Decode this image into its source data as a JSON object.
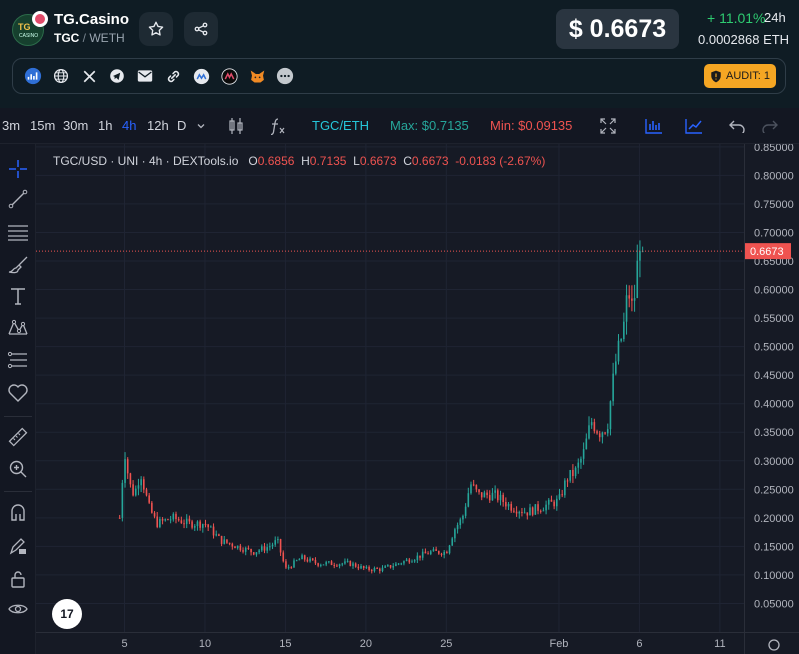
{
  "header": {
    "logo_text": "TG",
    "logo_sub": "CASINO",
    "token_name": "TG.Casino",
    "pair_base": "TGC",
    "pair_sep": " / ",
    "pair_quote": "WETH",
    "price": "$ 0.6673",
    "change": "+ 11.01%",
    "change_period": "24h",
    "eth_price": "0.0002868  ETH"
  },
  "links": {
    "audit_label": "AUDIT: 1",
    "items": [
      "chart-icon",
      "globe-icon",
      "x-icon",
      "telegram-icon",
      "email-icon",
      "link-icon",
      "coinmarketcap-icon",
      "coingecko-icon",
      "metamask-icon",
      "more-icon"
    ]
  },
  "toolbar": {
    "timeframes": [
      "3m",
      "15m",
      "30m",
      "1h",
      "4h",
      "12h",
      "D"
    ],
    "active_timeframe": "4h",
    "pair_label": "TGC/ETH",
    "max_label": "Max: $0.7135",
    "min_label": "Min: $0.09135"
  },
  "legend": {
    "title": "TGC/USD · UNI · 4h · DEXTools.io",
    "o_key": "O",
    "o_val": "0.6856",
    "h_key": "H",
    "h_val": "0.7135",
    "l_key": "L",
    "l_val": "0.6673",
    "c_key": "C",
    "c_val": "0.6673",
    "chg": "-0.0183 (-2.67%)"
  },
  "tv_logo": "17",
  "colors": {
    "up": "#26a69a",
    "down": "#ef5350",
    "accent": "#2962ff",
    "price_tag": "#ef5350"
  },
  "chart_data": {
    "type": "candlestick",
    "title": "TGC/USD · UNI · 4h · DEXTools.io",
    "current_price": 0.6673,
    "current_price_label": "0.6673",
    "ylim": [
      0.0,
      0.855
    ],
    "y_ticks": [
      0.05,
      0.1,
      0.15,
      0.2,
      0.25,
      0.3,
      0.35,
      0.4,
      0.45,
      0.5,
      0.55,
      0.6,
      0.65,
      0.7,
      0.75,
      0.8,
      0.85
    ],
    "y_tick_labels": [
      "0.05000",
      "0.10000",
      "0.15000",
      "0.20000",
      "0.25000",
      "0.30000",
      "0.35000",
      "0.40000",
      "0.45000",
      "0.50000",
      "0.55000",
      "0.60000",
      "0.65000",
      "0.70000",
      "0.75000",
      "0.80000",
      "0.85000"
    ],
    "x_ticks": [
      {
        "day": 5,
        "label": "5"
      },
      {
        "day": 10,
        "label": "10"
      },
      {
        "day": 15,
        "label": "15"
      },
      {
        "day": 20,
        "label": "20"
      },
      {
        "day": 25,
        "label": "25"
      },
      {
        "day": 32,
        "label": "Feb"
      },
      {
        "day": 37,
        "label": "6"
      },
      {
        "day": 42,
        "label": "11"
      }
    ],
    "xlim": [
      -0.5,
      43.5
    ],
    "price_path_days": [
      4.7,
      5.0,
      5.3,
      5.6,
      6.0,
      6.5,
      7.0,
      8.0,
      9.0,
      10.0,
      11.0,
      12.0,
      13.0,
      14.0,
      14.5,
      15.0,
      15.5,
      16.0,
      17.0,
      18.0,
      19.0,
      20.0,
      21.0,
      22.0,
      23.0,
      24.0,
      25.0,
      25.5,
      26.0,
      26.5,
      27.0,
      28.0,
      29.0,
      30.0,
      31.0,
      32.0,
      32.5,
      33.0,
      33.5,
      34.0,
      34.5,
      35.0,
      35.5,
      36.0,
      36.3,
      36.6,
      36.9,
      37.2
    ],
    "price_path_values": [
      0.2,
      0.32,
      0.26,
      0.24,
      0.28,
      0.22,
      0.19,
      0.2,
      0.19,
      0.19,
      0.16,
      0.15,
      0.14,
      0.15,
      0.16,
      0.11,
      0.12,
      0.13,
      0.12,
      0.12,
      0.12,
      0.11,
      0.11,
      0.12,
      0.13,
      0.14,
      0.14,
      0.18,
      0.2,
      0.26,
      0.24,
      0.24,
      0.22,
      0.21,
      0.22,
      0.23,
      0.27,
      0.28,
      0.31,
      0.37,
      0.35,
      0.36,
      0.47,
      0.53,
      0.6,
      0.56,
      0.65,
      0.6673
    ],
    "max_price": 0.7135,
    "min_price": 0.09135
  }
}
